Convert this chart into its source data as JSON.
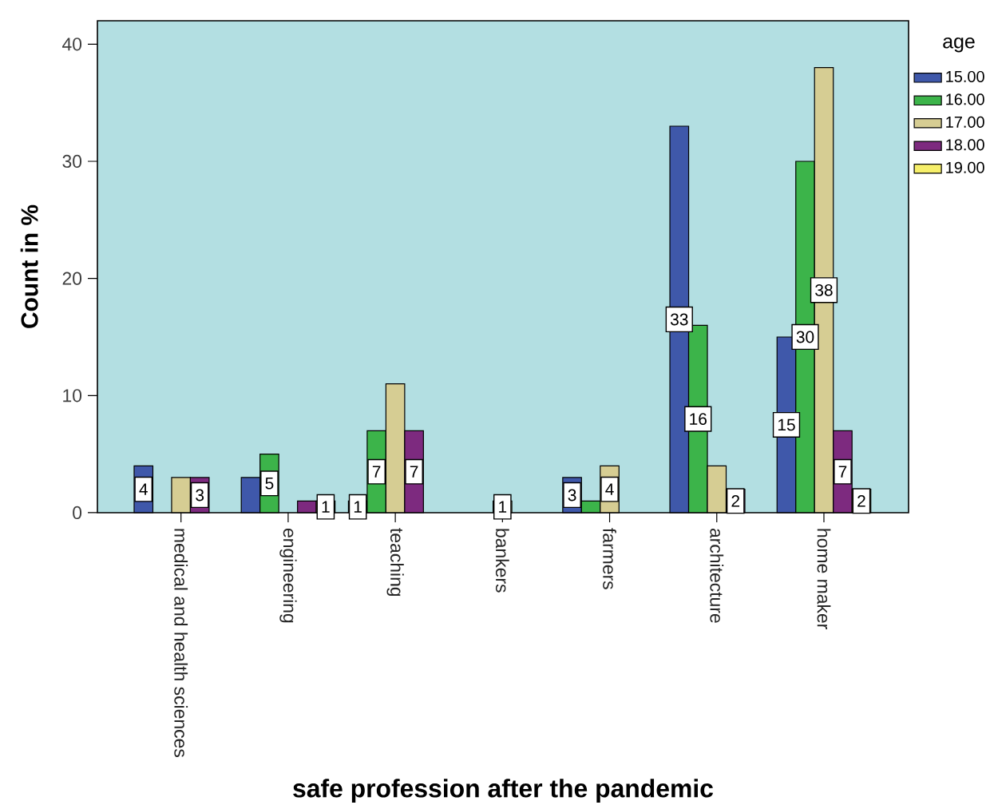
{
  "chart_data": {
    "type": "bar",
    "xlabel": "safe profession after the pandemic",
    "ylabel": "Count in %",
    "legend_title": "age",
    "legend": "right",
    "grid": false,
    "categories": [
      "medical and health sciences",
      "engineering",
      "teaching",
      "bankers",
      "farmers",
      "architecture",
      "home maker"
    ],
    "ylim": [
      0,
      42
    ],
    "yticks": [
      0,
      10,
      20,
      30,
      40
    ],
    "series": [
      {
        "name": "15.00",
        "color": "#3f58aa",
        "values": [
          4,
          3,
          1,
          null,
          3,
          33,
          15
        ],
        "value_labels": [
          "4",
          null,
          "1",
          null,
          "3",
          "33",
          "15"
        ]
      },
      {
        "name": "16.00",
        "color": "#3cb44a",
        "values": [
          null,
          5,
          7,
          null,
          1,
          16,
          30
        ],
        "value_labels": [
          null,
          "5",
          "7",
          null,
          null,
          "16",
          "30"
        ]
      },
      {
        "name": "17.00",
        "color": "#d6cd93",
        "values": [
          3,
          null,
          11,
          1,
          4,
          4,
          38
        ],
        "value_labels": [
          null,
          null,
          null,
          "1",
          "4",
          null,
          "38"
        ]
      },
      {
        "name": "18.00",
        "color": "#7d2a7f",
        "values": [
          3,
          1,
          7,
          null,
          null,
          2,
          7
        ],
        "value_labels": [
          "3",
          null,
          "7",
          null,
          null,
          "2",
          "7"
        ]
      },
      {
        "name": "19.00",
        "color": "#f6ef6a",
        "values": [
          null,
          1,
          null,
          null,
          null,
          null,
          2
        ],
        "value_labels": [
          null,
          "1",
          null,
          null,
          null,
          null,
          "2"
        ]
      }
    ]
  }
}
